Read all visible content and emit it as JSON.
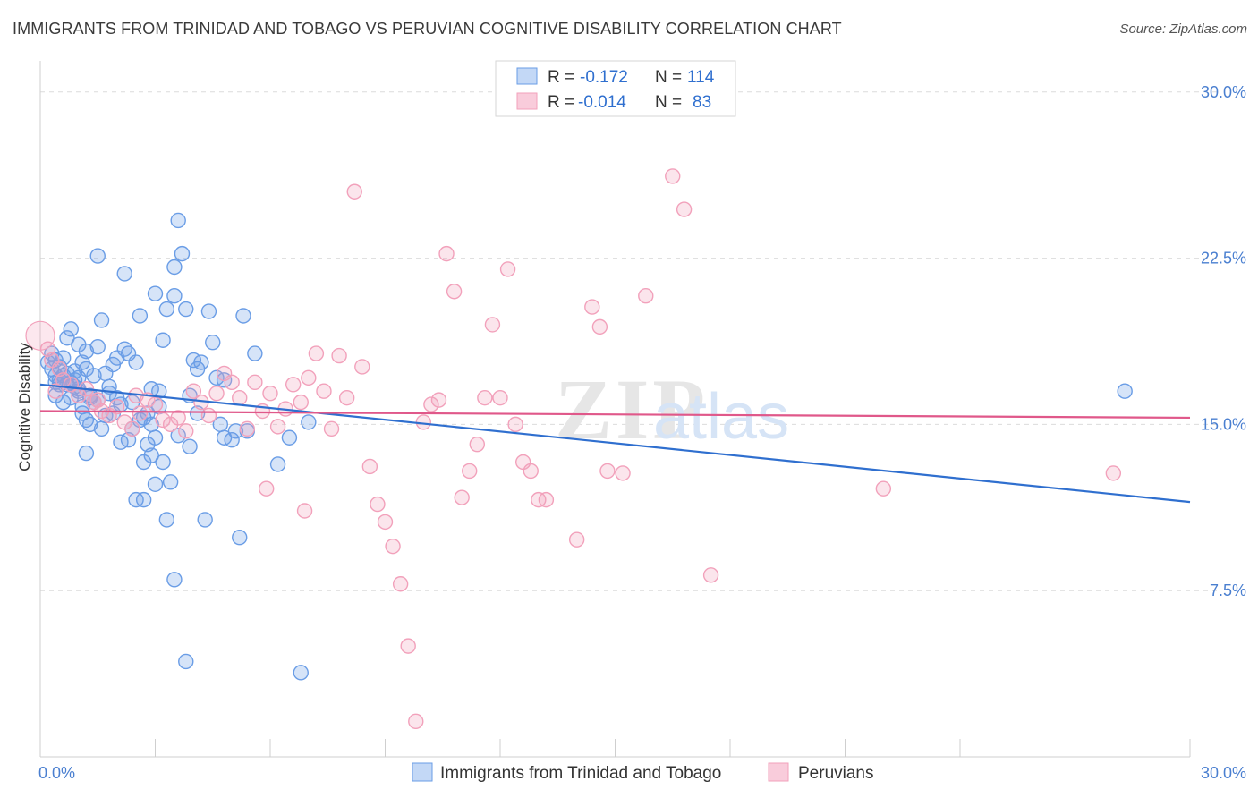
{
  "header": {
    "title": "IMMIGRANTS FROM TRINIDAD AND TOBAGO VS PERUVIAN COGNITIVE DISABILITY CORRELATION CHART",
    "source": "Source: ZipAtlas.com"
  },
  "watermark": {
    "zip": "ZIP",
    "atlas": "atlas"
  },
  "chart_data": {
    "type": "scatter",
    "ylabel": "Cognitive Disability",
    "xlim": [
      0,
      30
    ],
    "ylim": [
      0,
      31
    ],
    "x_ticks": [
      "0.0%",
      "30.0%"
    ],
    "y_ticks": [
      {
        "value": 30,
        "label": "30.0%"
      },
      {
        "value": 22.5,
        "label": "22.5%"
      },
      {
        "value": 15,
        "label": "15.0%"
      },
      {
        "value": 7.5,
        "label": "7.5%"
      }
    ],
    "legend": {
      "position": "top-center",
      "rows": [
        {
          "r_label": "R =",
          "r_value": "-0.172",
          "n_label": "N =",
          "n_value": "114"
        },
        {
          "r_label": "R =",
          "r_value": "-0.014",
          "n_label": "N =",
          "n_value": "83"
        }
      ]
    },
    "series": [
      {
        "name": "Immigrants from Trinidad and Tobago",
        "color": "#6a9de6",
        "line_color": "#2f6fcf",
        "trend": [
          [
            0,
            16.8
          ],
          [
            30,
            11.5
          ]
        ],
        "points": [
          [
            0.2,
            17.8
          ],
          [
            0.3,
            18.2
          ],
          [
            0.3,
            17.5
          ],
          [
            0.4,
            17.9
          ],
          [
            0.4,
            17.2
          ],
          [
            0.5,
            16.8
          ],
          [
            0.5,
            17.6
          ],
          [
            0.6,
            17.0
          ],
          [
            0.6,
            18.0
          ],
          [
            0.7,
            17.3
          ],
          [
            0.8,
            16.9
          ],
          [
            0.9,
            17.4
          ],
          [
            1.0,
            17.1
          ],
          [
            1.0,
            16.6
          ],
          [
            1.1,
            17.8
          ],
          [
            1.2,
            18.3
          ],
          [
            1.2,
            17.5
          ],
          [
            1.3,
            16.2
          ],
          [
            1.4,
            17.2
          ],
          [
            0.4,
            16.3
          ],
          [
            0.6,
            16.0
          ],
          [
            0.7,
            18.9
          ],
          [
            0.8,
            19.3
          ],
          [
            0.9,
            17.0
          ],
          [
            1.0,
            16.5
          ],
          [
            1.1,
            15.8
          ],
          [
            1.2,
            15.2
          ],
          [
            1.3,
            15.0
          ],
          [
            1.5,
            18.5
          ],
          [
            1.6,
            19.7
          ],
          [
            1.7,
            17.3
          ],
          [
            1.8,
            16.4
          ],
          [
            1.9,
            17.7
          ],
          [
            2.0,
            18.0
          ],
          [
            2.1,
            15.9
          ],
          [
            2.2,
            18.4
          ],
          [
            2.3,
            18.2
          ],
          [
            2.4,
            16.0
          ],
          [
            2.5,
            17.8
          ],
          [
            2.6,
            19.9
          ],
          [
            2.7,
            15.3
          ],
          [
            2.8,
            14.1
          ],
          [
            2.9,
            15.0
          ],
          [
            3.0,
            14.4
          ],
          [
            3.1,
            16.5
          ],
          [
            3.2,
            18.8
          ],
          [
            3.3,
            20.2
          ],
          [
            3.5,
            22.1
          ],
          [
            3.6,
            24.2
          ],
          [
            3.7,
            22.7
          ],
          [
            3.8,
            20.2
          ],
          [
            3.9,
            16.3
          ],
          [
            4.0,
            17.9
          ],
          [
            4.1,
            17.5
          ],
          [
            4.2,
            17.8
          ],
          [
            4.4,
            20.1
          ],
          [
            4.5,
            18.7
          ],
          [
            4.6,
            17.1
          ],
          [
            4.7,
            15.0
          ],
          [
            4.8,
            14.4
          ],
          [
            5.0,
            14.3
          ],
          [
            5.1,
            14.7
          ],
          [
            5.3,
            19.9
          ],
          [
            5.4,
            14.7
          ],
          [
            5.2,
            9.9
          ],
          [
            4.3,
            10.7
          ],
          [
            3.4,
            12.4
          ],
          [
            3.2,
            13.3
          ],
          [
            3.0,
            12.3
          ],
          [
            2.9,
            13.6
          ],
          [
            2.7,
            11.6
          ],
          [
            2.5,
            11.6
          ],
          [
            3.3,
            10.7
          ],
          [
            3.5,
            8.0
          ],
          [
            3.8,
            4.3
          ],
          [
            6.8,
            3.8
          ],
          [
            6.2,
            13.2
          ],
          [
            6.5,
            14.4
          ],
          [
            7.0,
            15.1
          ],
          [
            2.2,
            21.8
          ],
          [
            1.5,
            22.6
          ],
          [
            3.0,
            20.9
          ],
          [
            3.5,
            20.8
          ],
          [
            2.4,
            14.8
          ],
          [
            1.9,
            15.5
          ],
          [
            1.6,
            14.8
          ],
          [
            2.1,
            14.2
          ],
          [
            2.3,
            14.3
          ],
          [
            2.6,
            15.2
          ],
          [
            2.9,
            16.6
          ],
          [
            3.1,
            15.8
          ],
          [
            2.0,
            16.2
          ],
          [
            1.8,
            16.7
          ],
          [
            1.7,
            15.4
          ],
          [
            1.4,
            16.0
          ],
          [
            1.3,
            16.3
          ],
          [
            1.1,
            15.5
          ],
          [
            0.9,
            16.7
          ],
          [
            0.8,
            16.2
          ],
          [
            0.7,
            16.8
          ],
          [
            0.6,
            17.2
          ],
          [
            0.5,
            17.0
          ],
          [
            0.4,
            16.9
          ],
          [
            1.5,
            16.1
          ],
          [
            2.8,
            15.5
          ],
          [
            1.2,
            13.7
          ],
          [
            2.7,
            13.3
          ],
          [
            3.6,
            14.5
          ],
          [
            3.9,
            14.0
          ],
          [
            4.1,
            15.5
          ],
          [
            4.8,
            17.0
          ],
          [
            5.6,
            18.2
          ],
          [
            1.0,
            18.6
          ],
          [
            28.3,
            16.5
          ]
        ]
      },
      {
        "name": "Peruvians",
        "color": "#f2a1bb",
        "line_color": "#e0588a",
        "trend": [
          [
            0,
            15.6
          ],
          [
            30,
            15.3
          ]
        ],
        "points": [
          [
            0.3,
            17.9
          ],
          [
            0.5,
            17.5
          ],
          [
            0.6,
            17.0
          ],
          [
            0.8,
            16.8
          ],
          [
            1.0,
            16.3
          ],
          [
            1.2,
            16.6
          ],
          [
            1.4,
            16.0
          ],
          [
            1.6,
            15.6
          ],
          [
            1.8,
            15.4
          ],
          [
            2.0,
            15.8
          ],
          [
            2.2,
            15.1
          ],
          [
            2.4,
            14.8
          ],
          [
            2.6,
            15.5
          ],
          [
            2.8,
            16.1
          ],
          [
            3.0,
            15.9
          ],
          [
            3.2,
            15.2
          ],
          [
            3.4,
            15.0
          ],
          [
            3.6,
            15.3
          ],
          [
            3.8,
            14.7
          ],
          [
            4.0,
            16.5
          ],
          [
            4.2,
            16.0
          ],
          [
            4.4,
            15.4
          ],
          [
            4.6,
            16.4
          ],
          [
            4.8,
            17.3
          ],
          [
            5.0,
            16.9
          ],
          [
            5.2,
            16.2
          ],
          [
            5.4,
            14.8
          ],
          [
            5.6,
            16.9
          ],
          [
            5.8,
            15.6
          ],
          [
            6.0,
            16.4
          ],
          [
            6.2,
            14.9
          ],
          [
            6.4,
            15.7
          ],
          [
            6.6,
            16.8
          ],
          [
            6.8,
            16.0
          ],
          [
            7.0,
            17.1
          ],
          [
            7.2,
            18.2
          ],
          [
            7.4,
            16.5
          ],
          [
            7.6,
            14.8
          ],
          [
            7.8,
            18.1
          ],
          [
            8.0,
            16.2
          ],
          [
            8.2,
            25.5
          ],
          [
            8.4,
            17.6
          ],
          [
            8.6,
            13.1
          ],
          [
            8.8,
            11.4
          ],
          [
            9.0,
            10.6
          ],
          [
            9.2,
            9.5
          ],
          [
            9.4,
            7.8
          ],
          [
            9.6,
            5.0
          ],
          [
            9.8,
            1.6
          ],
          [
            10.0,
            15.1
          ],
          [
            10.2,
            15.9
          ],
          [
            10.4,
            16.1
          ],
          [
            10.6,
            22.7
          ],
          [
            10.8,
            21.0
          ],
          [
            11.0,
            11.7
          ],
          [
            11.2,
            12.9
          ],
          [
            11.4,
            14.1
          ],
          [
            11.6,
            16.2
          ],
          [
            11.8,
            19.5
          ],
          [
            12.0,
            16.2
          ],
          [
            12.2,
            22.0
          ],
          [
            12.4,
            15.0
          ],
          [
            12.6,
            13.3
          ],
          [
            12.8,
            12.9
          ],
          [
            13.0,
            11.6
          ],
          [
            13.2,
            11.6
          ],
          [
            14.0,
            9.8
          ],
          [
            14.4,
            20.3
          ],
          [
            14.6,
            19.4
          ],
          [
            14.8,
            12.9
          ],
          [
            15.2,
            12.8
          ],
          [
            15.8,
            20.8
          ],
          [
            16.5,
            26.2
          ],
          [
            16.8,
            24.7
          ],
          [
            17.5,
            8.2
          ],
          [
            22.0,
            12.1
          ],
          [
            28.0,
            12.8
          ],
          [
            0.2,
            18.4
          ],
          [
            0.4,
            16.5
          ],
          [
            1.5,
            16.1
          ],
          [
            2.5,
            16.3
          ],
          [
            5.9,
            12.1
          ],
          [
            6.9,
            11.1
          ]
        ]
      }
    ]
  }
}
